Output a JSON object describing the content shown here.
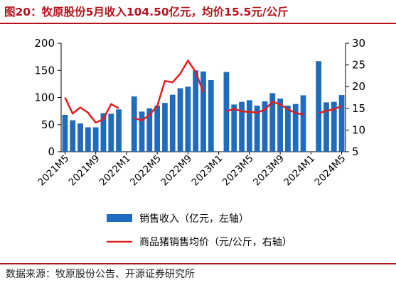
{
  "title": "图20：牧原股份5月收入104.50亿元，均价15.5元/公斤",
  "source": "数据来源：牧原股份公告、开源证券研究所",
  "colors": {
    "bar": "#1f6bbd",
    "line": "#e31d1d",
    "title": "#b5121b"
  },
  "chart_data": {
    "type": "bar",
    "x_tick_labels": [
      "2021M5",
      "2021M9",
      "2022M1",
      "2022M5",
      "2022M9",
      "2023M1",
      "2023M5",
      "2023M9",
      "2024M1",
      "2024M5"
    ],
    "y_left": {
      "lim": [
        0,
        200
      ],
      "ticks": [
        0,
        50,
        100,
        150,
        200
      ]
    },
    "y_right": {
      "lim": [
        5,
        30
      ],
      "ticks": [
        5,
        10,
        15,
        20,
        25,
        30
      ]
    },
    "legend": {
      "bar_label": "销售收入（亿元，左轴）",
      "line_label": "商品猪销售均价（元/公斤，右轴）",
      "position": "bottom"
    },
    "series": [
      {
        "name": "销售收入（亿元，左轴）",
        "axis": "left",
        "type": "bar",
        "x": [
          "2021M5",
          "2021M6",
          "2021M7",
          "2021M8",
          "2021M9",
          "2021M10",
          "2021M11",
          "2021M12",
          "2022M1",
          "2022M2",
          "2022M3",
          "2022M4",
          "2022M5",
          "2022M6",
          "2022M7",
          "2022M8",
          "2022M9",
          "2022M10",
          "2022M11",
          "2022M12",
          "2023M1",
          "2023M2",
          "2023M3",
          "2023M4",
          "2023M5",
          "2023M6",
          "2023M7",
          "2023M8",
          "2023M9",
          "2023M10",
          "2023M11",
          "2023M12",
          "2024M1",
          "2024M2",
          "2024M3",
          "2024M4",
          "2024M5"
        ],
        "values": [
          68,
          58,
          52,
          45,
          45,
          71,
          70,
          78,
          null,
          102,
          74,
          80,
          85,
          90,
          105,
          117,
          120,
          150,
          148,
          132,
          null,
          147,
          87,
          92,
          95,
          85,
          93,
          108,
          98,
          85,
          88,
          104,
          null,
          167,
          91,
          92,
          104.5
        ]
      },
      {
        "name": "商品猪销售均价（元/公斤，右轴）",
        "axis": "right",
        "type": "line",
        "x": [
          "2021M5",
          "2021M6",
          "2021M7",
          "2021M8",
          "2021M9",
          "2021M10",
          "2021M11",
          "2021M12",
          "2022M1",
          "2022M2",
          "2022M3",
          "2022M4",
          "2022M5",
          "2022M6",
          "2022M7",
          "2022M8",
          "2022M9",
          "2022M10",
          "2022M11",
          "2022M12",
          "2023M1",
          "2023M2",
          "2023M3",
          "2023M4",
          "2023M5",
          "2023M6",
          "2023M7",
          "2023M8",
          "2023M9",
          "2023M10",
          "2023M11",
          "2023M12",
          "2024M1",
          "2024M2",
          "2024M3",
          "2024M4",
          "2024M5"
        ],
        "values": [
          17.5,
          13.8,
          15.2,
          14.0,
          11.7,
          12.5,
          16.0,
          15.0,
          null,
          12.8,
          12.2,
          13.5,
          15.5,
          21.3,
          21.0,
          23.0,
          26.0,
          23.4,
          18.7,
          null,
          null,
          14.3,
          14.9,
          14.3,
          14.2,
          14.0,
          14.7,
          16.5,
          15.9,
          14.8,
          13.9,
          13.6,
          null,
          13.9,
          14.4,
          14.8,
          15.5
        ]
      }
    ]
  }
}
